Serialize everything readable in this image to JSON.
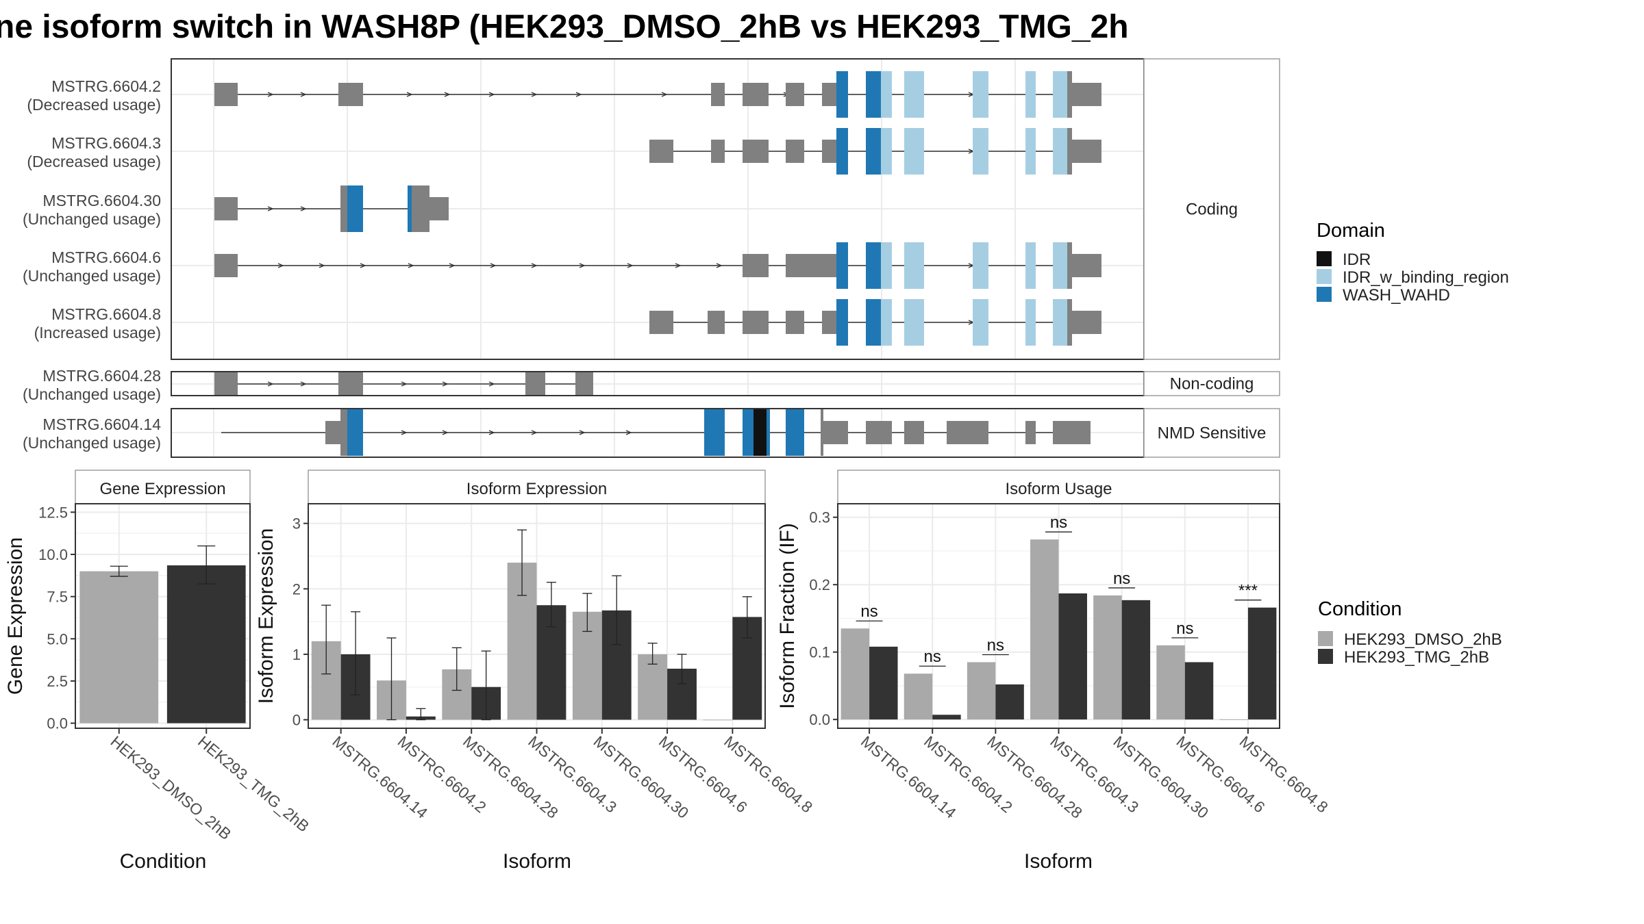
{
  "title": "ne isoform switch in WASH8P (HEK293_DMSO_2hB vs HEK293_TMG_2h",
  "colors": {
    "exon": "#808080",
    "IDR": "#111111",
    "IDR_w_binding_region": "#a6cee3",
    "WASH_WAHD": "#1f78b4",
    "HEK293_DMSO_2hB": "#a9a9a9",
    "HEK293_TMG_2hB": "#333333",
    "panel_border": "#333333",
    "grid": "#ebebeb",
    "strip_bg": "#ffffff"
  },
  "structure": {
    "groups": [
      {
        "name": "Coding",
        "isoforms": [
          {
            "id": "MSTRG.6604.2",
            "usage": "(Decreased usage)"
          },
          {
            "id": "MSTRG.6604.3",
            "usage": "(Decreased usage)"
          },
          {
            "id": "MSTRG.6604.30",
            "usage": "(Unchanged usage)"
          },
          {
            "id": "MSTRG.6604.6",
            "usage": "(Unchanged usage)"
          },
          {
            "id": "MSTRG.6604.8",
            "usage": "(Increased usage)"
          }
        ]
      },
      {
        "name": "Non-coding",
        "isoforms": [
          {
            "id": "MSTRG.6604.28",
            "usage": "(Unchanged usage)"
          }
        ]
      },
      {
        "name": "NMD Sensitive",
        "isoforms": [
          {
            "id": "MSTRG.6604.14",
            "usage": "(Unchanged usage)"
          }
        ]
      }
    ],
    "domain_legend": {
      "title": "Domain",
      "items": [
        {
          "name": "IDR",
          "color_key": "IDR"
        },
        {
          "name": "IDR_w_binding_region",
          "color_key": "IDR_w_binding_region"
        },
        {
          "name": "WASH_WAHD",
          "color_key": "WASH_WAHD"
        }
      ]
    }
  },
  "condition_legend": {
    "title": "Condition",
    "items": [
      "HEK293_DMSO_2hB",
      "HEK293_TMG_2hB"
    ]
  },
  "chart_data": [
    {
      "type": "bar",
      "title": "Gene Expression",
      "xlabel": "Condition",
      "ylabel": "Gene Expression",
      "categories": [
        "HEK293_DMSO_2hB",
        "HEK293_TMG_2hB"
      ],
      "values": [
        9.0,
        9.35
      ],
      "error_low": [
        8.7,
        8.25
      ],
      "error_high": [
        9.3,
        10.5
      ],
      "ylim": [
        -0.3,
        13.0
      ],
      "yticks": [
        "0.0",
        "2.5",
        "5.0",
        "7.5",
        "10.0",
        "12.5"
      ],
      "grid": true
    },
    {
      "type": "bar",
      "title": "Isoform Expression",
      "xlabel": "Isoform",
      "ylabel": "Isoform Expression",
      "categories": [
        "MSTRG.6604.14",
        "MSTRG.6604.2",
        "MSTRG.6604.28",
        "MSTRG.6604.3",
        "MSTRG.6604.30",
        "MSTRG.6604.6",
        "MSTRG.6604.8"
      ],
      "series": [
        {
          "name": "HEK293_DMSO_2hB",
          "values": [
            1.2,
            0.6,
            0.77,
            2.4,
            1.65,
            1.0,
            0.0
          ],
          "error_low": [
            0.7,
            0.0,
            0.45,
            1.9,
            1.35,
            0.85,
            0.0
          ],
          "error_high": [
            1.75,
            1.25,
            1.1,
            2.9,
            1.93,
            1.17,
            0.0
          ]
        },
        {
          "name": "HEK293_TMG_2hB",
          "values": [
            1.0,
            0.05,
            0.5,
            1.75,
            1.67,
            0.78,
            1.57
          ],
          "error_low": [
            0.38,
            0.0,
            0.0,
            1.42,
            1.15,
            0.55,
            1.25
          ],
          "error_high": [
            1.65,
            0.17,
            1.05,
            2.1,
            2.2,
            1.0,
            1.88
          ]
        }
      ],
      "ylim": [
        -0.13,
        3.3
      ],
      "yticks": [
        "0",
        "1",
        "2",
        "3"
      ],
      "grid": true
    },
    {
      "type": "bar",
      "title": "Isoform Usage",
      "xlabel": "Isoform",
      "ylabel": "Isoform Fraction (IF)",
      "categories": [
        "MSTRG.6604.14",
        "MSTRG.6604.2",
        "MSTRG.6604.28",
        "MSTRG.6604.3",
        "MSTRG.6604.30",
        "MSTRG.6604.6",
        "MSTRG.6604.8"
      ],
      "series": [
        {
          "name": "HEK293_DMSO_2hB",
          "values": [
            0.135,
            0.068,
            0.085,
            0.267,
            0.184,
            0.11,
            0.0
          ]
        },
        {
          "name": "HEK293_TMG_2hB",
          "values": [
            0.108,
            0.007,
            0.052,
            0.187,
            0.177,
            0.085,
            0.166
          ]
        }
      ],
      "significance": [
        "ns",
        "ns",
        "ns",
        "ns",
        "ns",
        "ns",
        "***"
      ],
      "ylim": [
        -0.013,
        0.32
      ],
      "yticks": [
        "0.0",
        "0.1",
        "0.2",
        "0.3"
      ],
      "grid": true
    }
  ]
}
